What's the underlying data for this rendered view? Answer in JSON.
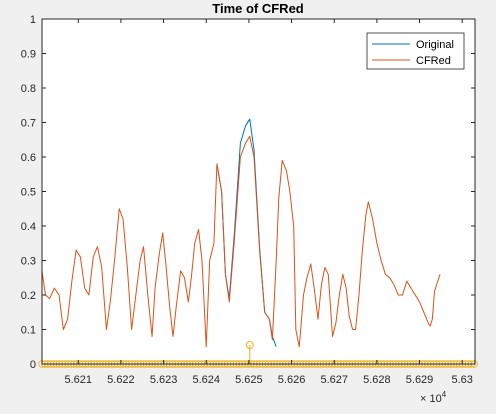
{
  "figure": {
    "background": "#f0f0f0",
    "axes_background": "#ffffff"
  },
  "chart_data": {
    "type": "line",
    "title": "Time of CFRed",
    "xlabel": "",
    "ylabel": "",
    "x_exponent_label": "× 10",
    "x_exponent": "4",
    "xlim": [
      56201.5,
      56303.0
    ],
    "ylim": [
      0,
      1
    ],
    "x_ticks": [
      56210,
      56220,
      56230,
      56240,
      56250,
      56260,
      56270,
      56280,
      56290,
      56300
    ],
    "x_tick_labels": [
      "5.621",
      "5.622",
      "5.623",
      "5.624",
      "5.625",
      "5.626",
      "5.627",
      "5.628",
      "5.629",
      "5.63"
    ],
    "y_ticks": [
      0,
      0.1,
      0.2,
      0.3,
      0.4,
      0.5,
      0.6,
      0.7,
      0.8,
      0.9,
      1
    ],
    "y_tick_labels": [
      "0",
      "0.1",
      "0.2",
      "0.3",
      "0.4",
      "0.5",
      "0.6",
      "0.7",
      "0.8",
      "0.9",
      "1"
    ],
    "grid": false,
    "legend": {
      "position": "top-right",
      "entries": [
        "Original",
        "CFRed"
      ]
    },
    "series": [
      {
        "name": "Original",
        "color": "#0072bd",
        "points": [
          [
            56242.5,
            0.58
          ],
          [
            56243.6,
            0.5
          ],
          [
            56244.5,
            0.26
          ],
          [
            56245.4,
            0.19
          ],
          [
            56246.6,
            0.38
          ],
          [
            56248.0,
            0.64
          ],
          [
            56249.2,
            0.69
          ],
          [
            56250.2,
            0.71
          ],
          [
            56251.2,
            0.62
          ],
          [
            56252.5,
            0.34
          ],
          [
            56253.7,
            0.15
          ],
          [
            56254.8,
            0.13
          ],
          [
            56255.5,
            0.08
          ],
          [
            56256.4,
            0.05
          ]
        ]
      },
      {
        "name": "CFRed",
        "color": "#d95319",
        "points": [
          [
            56201.5,
            0.27
          ],
          [
            56202.3,
            0.2
          ],
          [
            56203.3,
            0.19
          ],
          [
            56204.4,
            0.22
          ],
          [
            56205.5,
            0.2
          ],
          [
            56206.5,
            0.1
          ],
          [
            56207.5,
            0.13
          ],
          [
            56208.5,
            0.24
          ],
          [
            56209.5,
            0.33
          ],
          [
            56210.5,
            0.31
          ],
          [
            56211.5,
            0.22
          ],
          [
            56212.5,
            0.2
          ],
          [
            56213.5,
            0.31
          ],
          [
            56214.5,
            0.34
          ],
          [
            56215.5,
            0.28
          ],
          [
            56216.6,
            0.1
          ],
          [
            56217.5,
            0.18
          ],
          [
            56218.5,
            0.3
          ],
          [
            56219.6,
            0.45
          ],
          [
            56220.5,
            0.42
          ],
          [
            56221.5,
            0.28
          ],
          [
            56222.5,
            0.1
          ],
          [
            56223.5,
            0.2
          ],
          [
            56224.5,
            0.3
          ],
          [
            56225.3,
            0.34
          ],
          [
            56226.3,
            0.2
          ],
          [
            56227.3,
            0.08
          ],
          [
            56228.0,
            0.22
          ],
          [
            56229.0,
            0.32
          ],
          [
            56229.8,
            0.38
          ],
          [
            56230.6,
            0.28
          ],
          [
            56231.4,
            0.17
          ],
          [
            56232.2,
            0.08
          ],
          [
            56233.0,
            0.17
          ],
          [
            56234.0,
            0.27
          ],
          [
            56234.9,
            0.25
          ],
          [
            56235.8,
            0.18
          ],
          [
            56236.5,
            0.25
          ],
          [
            56237.3,
            0.35
          ],
          [
            56238.2,
            0.39
          ],
          [
            56239.0,
            0.3
          ],
          [
            56240.0,
            0.05
          ],
          [
            56240.8,
            0.3
          ],
          [
            56241.8,
            0.35
          ],
          [
            56242.5,
            0.58
          ],
          [
            56243.6,
            0.5
          ],
          [
            56244.5,
            0.26
          ],
          [
            56245.4,
            0.18
          ],
          [
            56246.6,
            0.36
          ],
          [
            56248.0,
            0.6
          ],
          [
            56249.2,
            0.64
          ],
          [
            56250.2,
            0.66
          ],
          [
            56251.2,
            0.6
          ],
          [
            56252.5,
            0.33
          ],
          [
            56253.7,
            0.15
          ],
          [
            56254.8,
            0.13
          ],
          [
            56255.5,
            0.07
          ],
          [
            56256.4,
            0.3
          ],
          [
            56257.0,
            0.48
          ],
          [
            56257.8,
            0.59
          ],
          [
            56258.8,
            0.56
          ],
          [
            56259.6,
            0.5
          ],
          [
            56260.5,
            0.4
          ],
          [
            56261.0,
            0.1
          ],
          [
            56261.8,
            0.05
          ],
          [
            56262.8,
            0.2
          ],
          [
            56263.6,
            0.25
          ],
          [
            56264.5,
            0.29
          ],
          [
            56265.3,
            0.22
          ],
          [
            56266.2,
            0.13
          ],
          [
            56267.0,
            0.23
          ],
          [
            56267.8,
            0.28
          ],
          [
            56268.6,
            0.26
          ],
          [
            56269.6,
            0.08
          ],
          [
            56270.4,
            0.12
          ],
          [
            56271.2,
            0.2
          ],
          [
            56272.0,
            0.26
          ],
          [
            56272.8,
            0.22
          ],
          [
            56273.5,
            0.14
          ],
          [
            56274.3,
            0.1
          ],
          [
            56275.0,
            0.1
          ],
          [
            56275.8,
            0.2
          ],
          [
            56276.6,
            0.33
          ],
          [
            56277.4,
            0.43
          ],
          [
            56278.0,
            0.47
          ],
          [
            56279.0,
            0.42
          ],
          [
            56280.0,
            0.35
          ],
          [
            56281.0,
            0.3
          ],
          [
            56282.0,
            0.26
          ],
          [
            56283.0,
            0.25
          ],
          [
            56284.0,
            0.23
          ],
          [
            56285.0,
            0.2
          ],
          [
            56286.0,
            0.2
          ],
          [
            56287.0,
            0.24
          ],
          [
            56288.0,
            0.22
          ],
          [
            56289.0,
            0.2
          ],
          [
            56290.0,
            0.18
          ],
          [
            56291.0,
            0.15
          ],
          [
            56292.0,
            0.12
          ],
          [
            56292.5,
            0.11
          ],
          [
            56293.0,
            0.13
          ],
          [
            56293.5,
            0.21
          ],
          [
            56294.0,
            0.23
          ],
          [
            56294.8,
            0.26
          ]
        ]
      }
    ],
    "stems": {
      "color": "#edb120",
      "x_start": 56201.5,
      "x_end": 56303.0,
      "step": 0.68,
      "value": 0,
      "peak": {
        "x": 56250.2,
        "y": 0.055
      }
    }
  }
}
